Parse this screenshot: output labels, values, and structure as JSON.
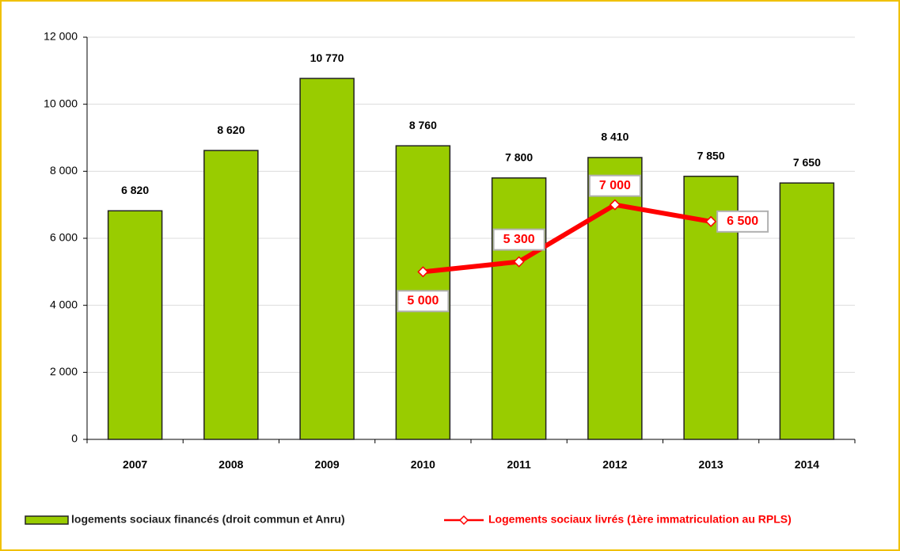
{
  "chart_data": {
    "type": "bar",
    "categories": [
      "2007",
      "2008",
      "2009",
      "2010",
      "2011",
      "2012",
      "2013",
      "2014"
    ],
    "series": [
      {
        "name": "logements sociaux financés (droit commun et Anru)",
        "type": "bar",
        "color": "#99cc00",
        "values": [
          6820,
          8620,
          10770,
          8760,
          7800,
          8410,
          7850,
          7650
        ],
        "value_labels": [
          "6 820",
          "8 620",
          "10 770",
          "8 760",
          "7 800",
          "8 410",
          "7 850",
          "7 650"
        ]
      },
      {
        "name": "Logements sociaux livrés (1ère immatriculation au RPLS)",
        "type": "line",
        "color": "#ff0000",
        "values": [
          null,
          null,
          null,
          5000,
          5300,
          7000,
          6500,
          null
        ],
        "value_labels": [
          null,
          null,
          null,
          "5 000",
          "5 300",
          "7 000",
          "6 500",
          null
        ]
      }
    ],
    "ylim": [
      0,
      12000
    ],
    "yticks": [
      {
        "value": 0,
        "label": "0"
      },
      {
        "value": 2000,
        "label": "2 000"
      },
      {
        "value": 4000,
        "label": "4 000"
      },
      {
        "value": 6000,
        "label": "6 000"
      },
      {
        "value": 8000,
        "label": "8 000"
      },
      {
        "value": 10000,
        "label": "10 000"
      },
      {
        "value": 12000,
        "label": "12 000"
      }
    ],
    "grid": true,
    "legend": "bottom"
  }
}
